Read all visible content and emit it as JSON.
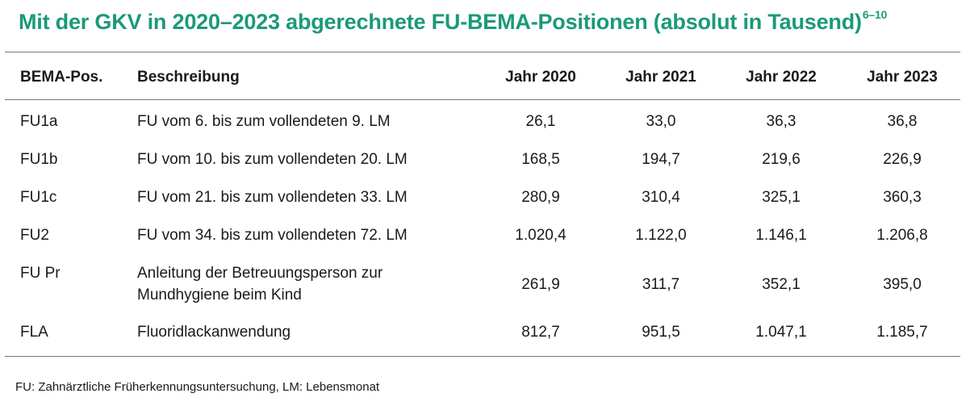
{
  "title": {
    "text": "Mit der GKV in 2020–2023 abgerechnete FU-BEMA-Positionen (absolut in Tausend)",
    "superscript": "6–10"
  },
  "table": {
    "headers": {
      "pos": "BEMA-Pos.",
      "desc": "Beschreibung",
      "y2020": "Jahr 2020",
      "y2021": "Jahr 2021",
      "y2022": "Jahr 2022",
      "y2023": "Jahr 2023"
    },
    "rows": [
      {
        "pos": "FU1a",
        "desc": "FU vom 6. bis zum vollendeten 9. LM",
        "y2020": "26,1",
        "y2021": "33,0",
        "y2022": "36,3",
        "y2023": "36,8"
      },
      {
        "pos": "FU1b",
        "desc": "FU vom 10. bis zum vollendeten 20. LM",
        "y2020": "168,5",
        "y2021": "194,7",
        "y2022": "219,6",
        "y2023": "226,9"
      },
      {
        "pos": "FU1c",
        "desc": "FU vom 21. bis zum vollendeten 33. LM",
        "y2020": "280,9",
        "y2021": "310,4",
        "y2022": "325,1",
        "y2023": "360,3"
      },
      {
        "pos": "FU2",
        "desc": "FU vom 34. bis zum vollendeten 72. LM",
        "y2020": "1.020,4",
        "y2021": "1.122,0",
        "y2022": "1.146,1",
        "y2023": "1.206,8"
      },
      {
        "pos": "FU Pr",
        "desc_line1": "Anleitung der Betreuungsperson zur",
        "desc_line2": "Mundhygiene beim Kind",
        "y2020": "261,9",
        "y2021": "311,7",
        "y2022": "352,1",
        "y2023": "395,0"
      },
      {
        "pos": "FLA",
        "desc": "Fluoridlackanwendung",
        "y2020": "812,7",
        "y2021": "951,5",
        "y2022": "1.047,1",
        "y2023": "1.185,7"
      }
    ]
  },
  "footnote": "FU: Zahnärztliche Früherkennungsuntersuchung, LM: Lebensmonat",
  "colors": {
    "title": "#1a9a78",
    "rule": "#777777",
    "text": "#1a1a1a"
  }
}
